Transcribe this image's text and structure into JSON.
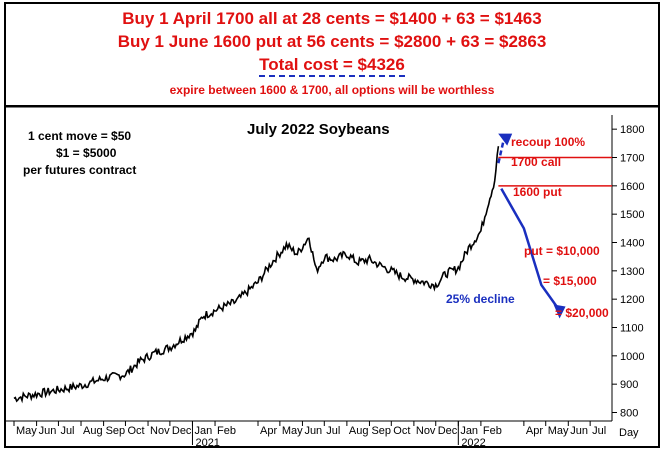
{
  "header": {
    "line1": "Buy 1 April 1700 all at 28 cents = $1400 + 63 = $1463",
    "line2": "Buy 1 June 1600 put at 56 cents = $2800 + 63 = $2863",
    "line3": "Total cost = $4326",
    "line4": "expire between 1600 & 1700, all options will be worthless"
  },
  "colors": {
    "red": "#e01010",
    "blue": "#1a2fbf",
    "black": "#000000"
  },
  "chart_data": {
    "type": "line",
    "title": "July 2022 Soybeans",
    "ylim": [
      770,
      1850
    ],
    "yticks": [
      800,
      900,
      1000,
      1100,
      1200,
      1300,
      1400,
      1500,
      1600,
      1700,
      1800
    ],
    "xaxis_unit": "Day",
    "x_month_labels": [
      "May",
      "Jun",
      "Jul",
      "Aug",
      "Sep",
      "Oct",
      "Nov",
      "Dec",
      "Jan",
      "Feb",
      "Apr",
      "May",
      "Jun",
      "Jul",
      "Aug",
      "Sep",
      "Oct",
      "Nov",
      "Dec",
      "Jan",
      "Feb",
      "Apr",
      "May",
      "Jun",
      "Jul"
    ],
    "x_year_labels": [
      "2021",
      "2022"
    ],
    "series": [
      {
        "x": [
          "2020-05-01",
          "2020-06-01",
          "2020-07-01",
          "2020-08-01",
          "2020-09-01",
          "2020-10-01",
          "2020-10-20",
          "2020-11-10",
          "2020-12-01",
          "2021-01-05",
          "2021-01-15",
          "2021-02-01",
          "2021-03-01",
          "2021-04-01",
          "2021-04-20",
          "2021-05-10",
          "2021-05-25",
          "2021-06-10",
          "2021-06-20",
          "2021-07-01",
          "2021-07-15",
          "2021-08-01",
          "2021-08-15",
          "2021-09-01",
          "2021-09-15",
          "2021-10-01",
          "2021-10-15",
          "2021-11-01",
          "2021-11-15",
          "2021-12-01",
          "2021-12-15",
          "2022-01-01",
          "2022-01-15",
          "2022-02-01",
          "2022-02-10",
          "2022-02-20",
          "2022-02-25"
        ],
        "values": [
          850,
          865,
          880,
          895,
          920,
          935,
          980,
          1010,
          1030,
          1090,
          1140,
          1160,
          1190,
          1260,
          1330,
          1390,
          1360,
          1420,
          1300,
          1350,
          1340,
          1360,
          1330,
          1340,
          1320,
          1300,
          1280,
          1270,
          1260,
          1250,
          1290,
          1310,
          1380,
          1440,
          1530,
          1620,
          1740
        ]
      }
    ],
    "annotations": {
      "move": [
        "1 cent move = $50",
        "$1 = $5000",
        "per futures contract"
      ],
      "recoup": "recoup 100%",
      "call": "1700 call",
      "put": "1600 put",
      "put10": "put = $10,000",
      "put15": "= $15,000",
      "put20": "= $20,000",
      "decline": "25% decline"
    },
    "strike_lines": [
      1700,
      1600
    ],
    "projection_up": {
      "from": [
        "2022-02-25",
        1680
      ],
      "to": [
        "2022-03-05",
        1770
      ]
    },
    "projection_down": [
      [
        "2022-03-01",
        1590
      ],
      [
        "2022-04-01",
        1450
      ],
      [
        "2022-04-25",
        1250
      ],
      [
        "2022-05-20",
        1160
      ]
    ]
  }
}
